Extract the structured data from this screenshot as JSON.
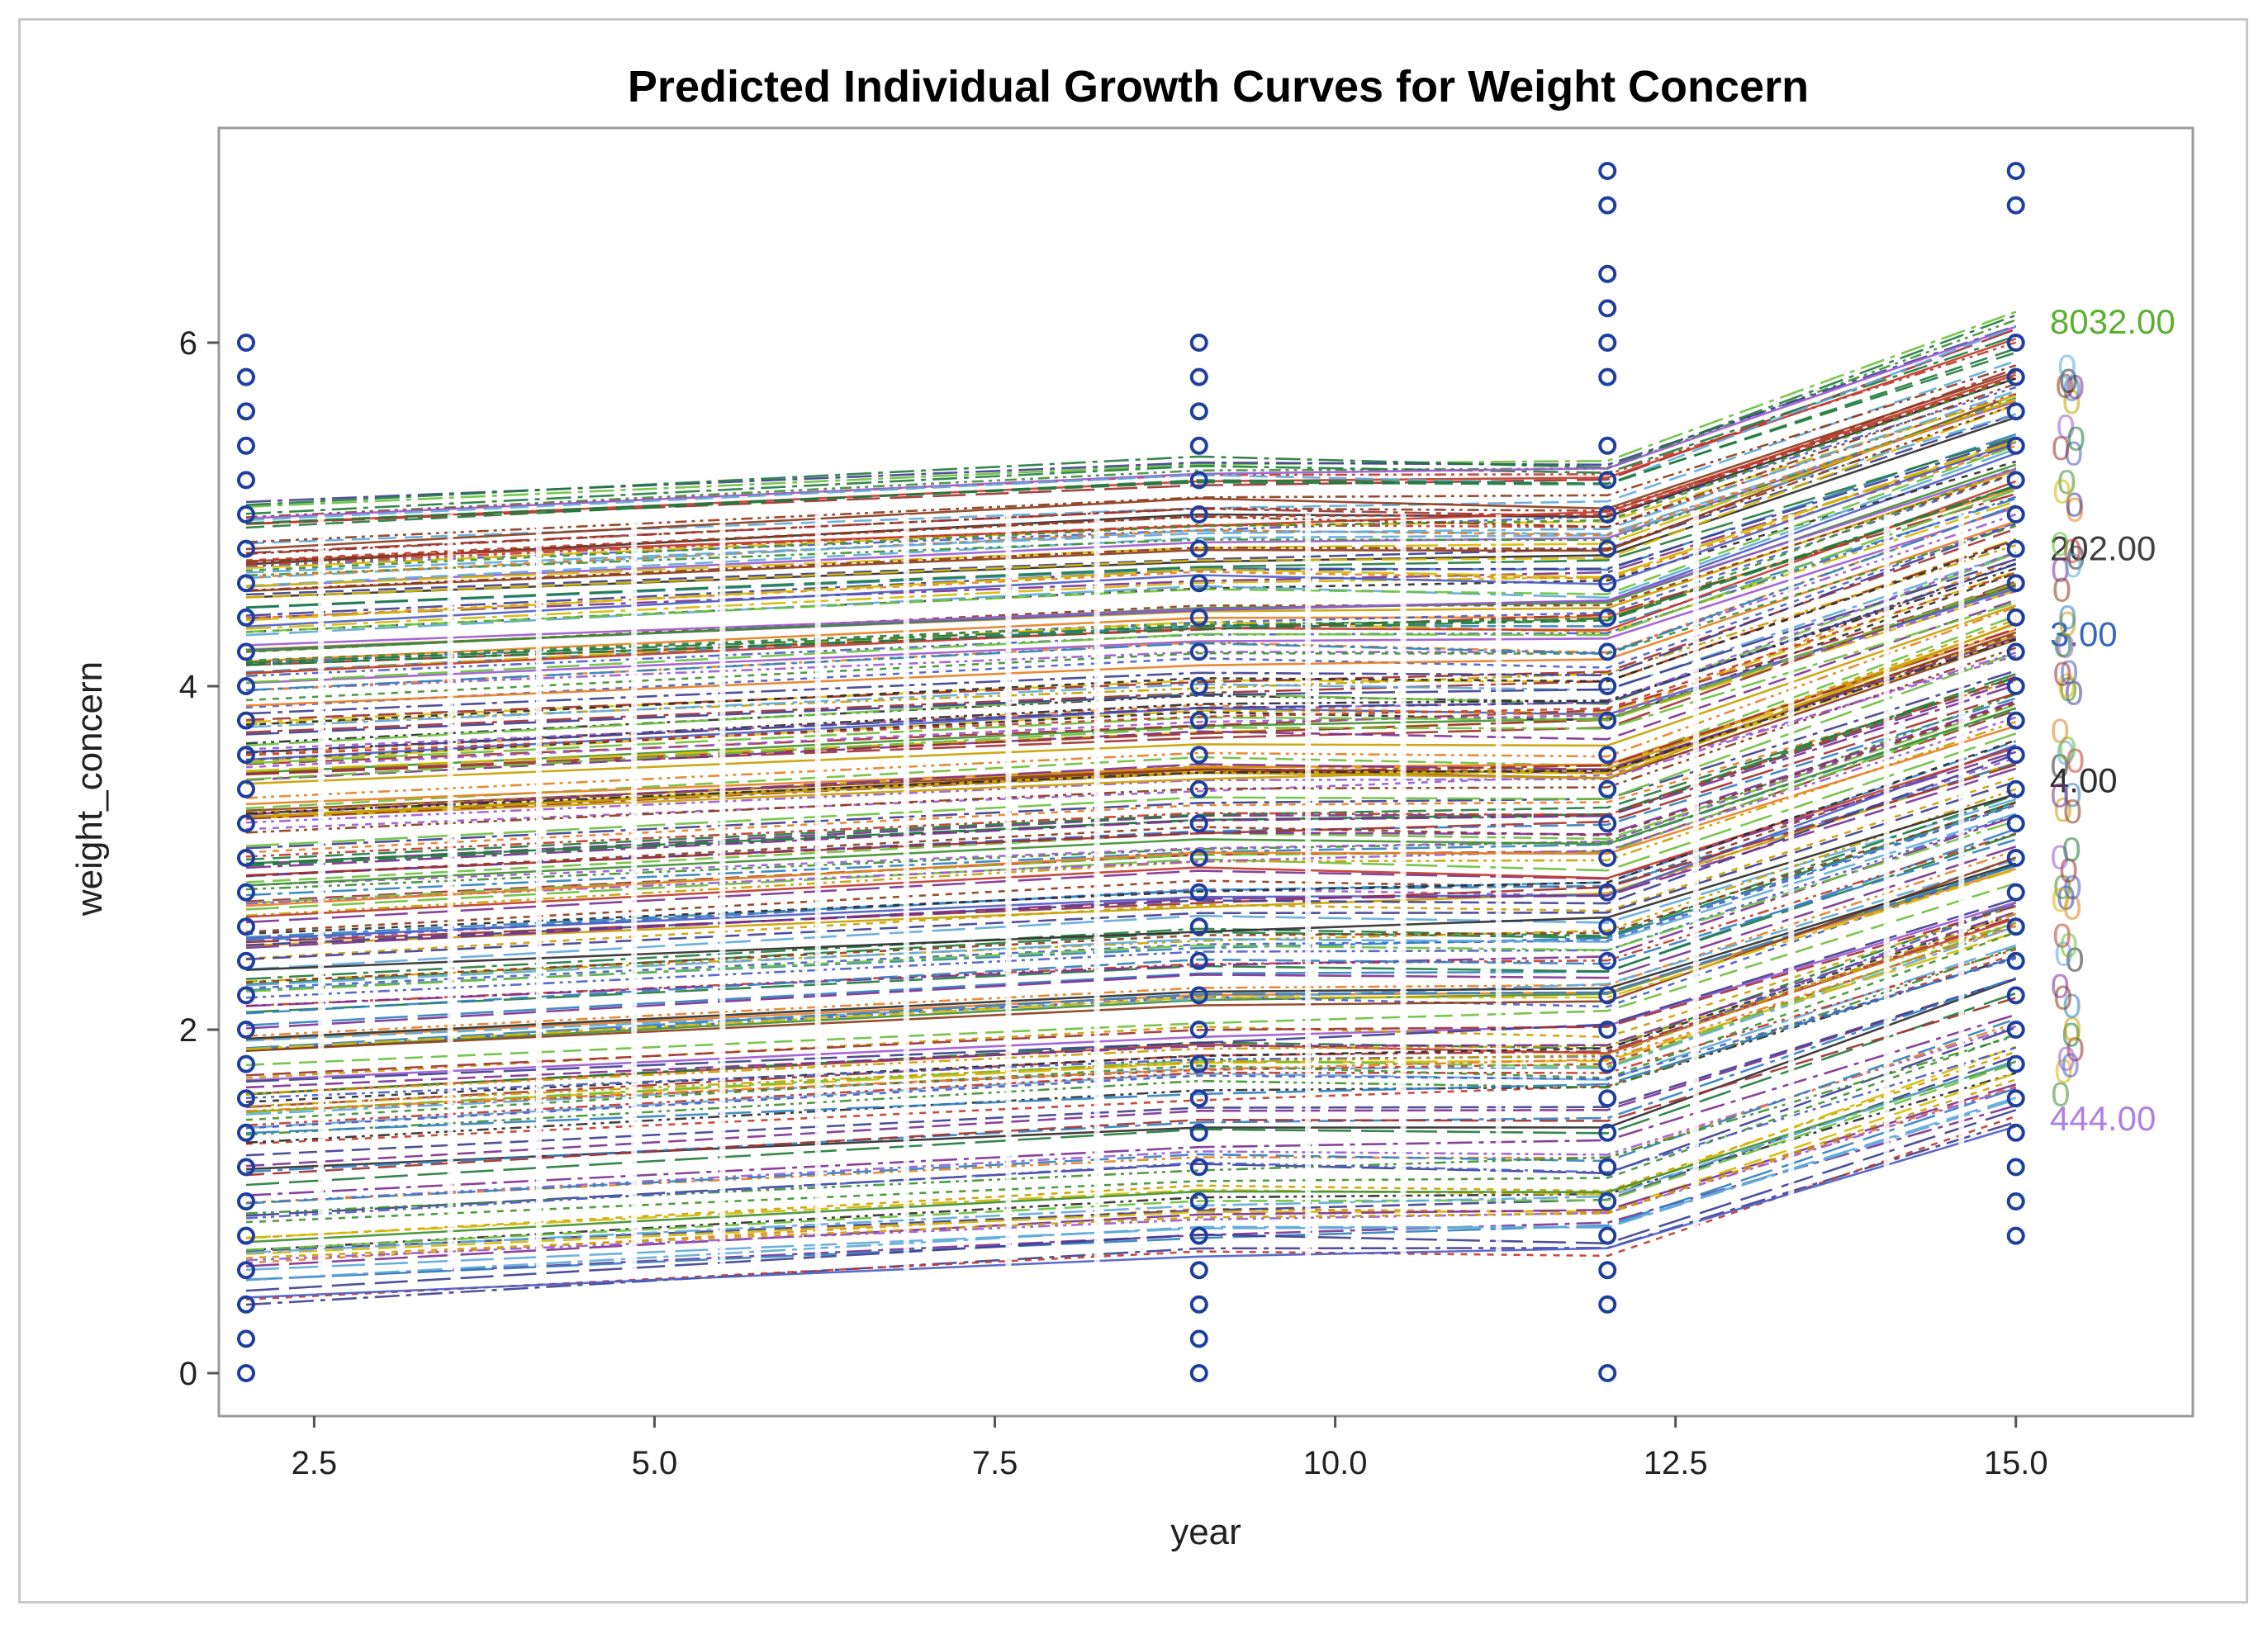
{
  "chart_data": {
    "type": "line",
    "title": "Predicted Individual Growth Curves for Weight Concern",
    "xlabel": "year",
    "ylabel": "weight_concern",
    "xlim": [
      1.8,
      16.3
    ],
    "ylim": [
      -0.25,
      7.25
    ],
    "x_ticks": [
      2.5,
      5.0,
      7.5,
      10.0,
      12.5,
      15.0
    ],
    "x_tick_labels": [
      "2.5",
      "5.0",
      "7.5",
      "10.0",
      "12.5",
      "15.0"
    ],
    "y_ticks": [
      0,
      2,
      4,
      6
    ],
    "y_tick_labels": [
      "0",
      "2",
      "4",
      "6"
    ],
    "time_points": [
      2,
      9,
      12,
      15
    ],
    "observed_points": [
      {
        "x": 2,
        "y": [
          0,
          0.2,
          0.4,
          0.6,
          0.8,
          1.0,
          1.2,
          1.4,
          1.6,
          1.8,
          2.0,
          2.2,
          2.4,
          2.6,
          2.8,
          3.0,
          3.2,
          3.4,
          3.6,
          3.8,
          4.0,
          4.2,
          4.4,
          4.6,
          4.8,
          5.0,
          5.2,
          5.4,
          5.6,
          5.8,
          6.0
        ]
      },
      {
        "x": 9,
        "y": [
          0,
          0.2,
          0.4,
          0.6,
          0.8,
          1.0,
          1.2,
          1.4,
          1.6,
          1.8,
          2.0,
          2.2,
          2.4,
          2.6,
          2.8,
          3.0,
          3.2,
          3.4,
          3.6,
          3.8,
          4.0,
          4.2,
          4.4,
          4.6,
          4.8,
          5.0,
          5.2,
          5.4,
          5.6,
          5.8,
          6.0
        ]
      },
      {
        "x": 12,
        "y": [
          0,
          0.4,
          0.6,
          0.8,
          1.0,
          1.2,
          1.4,
          1.6,
          1.8,
          2.0,
          2.2,
          2.4,
          2.6,
          2.8,
          3.0,
          3.2,
          3.4,
          3.6,
          3.8,
          4.0,
          4.2,
          4.4,
          4.6,
          4.8,
          5.0,
          5.2,
          5.4,
          5.8,
          6.0,
          6.2,
          6.4,
          6.8,
          7.0
        ]
      },
      {
        "x": 15,
        "y": [
          0.8,
          1.0,
          1.2,
          1.4,
          1.6,
          1.8,
          2.0,
          2.2,
          2.4,
          2.6,
          2.8,
          3.0,
          3.2,
          3.4,
          3.6,
          3.8,
          4.0,
          4.2,
          4.4,
          4.6,
          4.8,
          5.0,
          5.2,
          5.4,
          5.6,
          5.8,
          6.0,
          6.8,
          7.0
        ]
      }
    ],
    "curve_count": 240,
    "curve_range": {
      "at_year_2": [
        0.42,
        5.05
      ],
      "at_year_9": [
        0.7,
        5.3
      ],
      "at_year_12": [
        0.72,
        5.3
      ],
      "at_year_15": [
        1.48,
        6.12
      ]
    },
    "curve_colors": [
      "#3f8f2f",
      "#d4b800",
      "#4a5cc4",
      "#a03030",
      "#9b59d0",
      "#1f7a3c",
      "#c8a000",
      "#2f7fbf",
      "#8b3a1a",
      "#7b2f8f",
      "#2b2b2b",
      "#5da8d8",
      "#c0392b",
      "#6bbf3a",
      "#e67e22",
      "#3d3d8f"
    ],
    "visible_end_labels": [
      {
        "text": "8032.00",
        "y": 6.12,
        "color": "#5ab030"
      },
      {
        "text": "3.00",
        "y": 4.3,
        "color": "#3a66c0"
      },
      {
        "text": "202.00",
        "y": 4.8,
        "color": "#404040"
      },
      {
        "text": "4.00",
        "y": 3.45,
        "color": "#303030"
      },
      {
        "text": "444.00",
        "y": 1.48,
        "color": "#b080e0"
      }
    ],
    "marker_color": "#1f3f9f"
  }
}
